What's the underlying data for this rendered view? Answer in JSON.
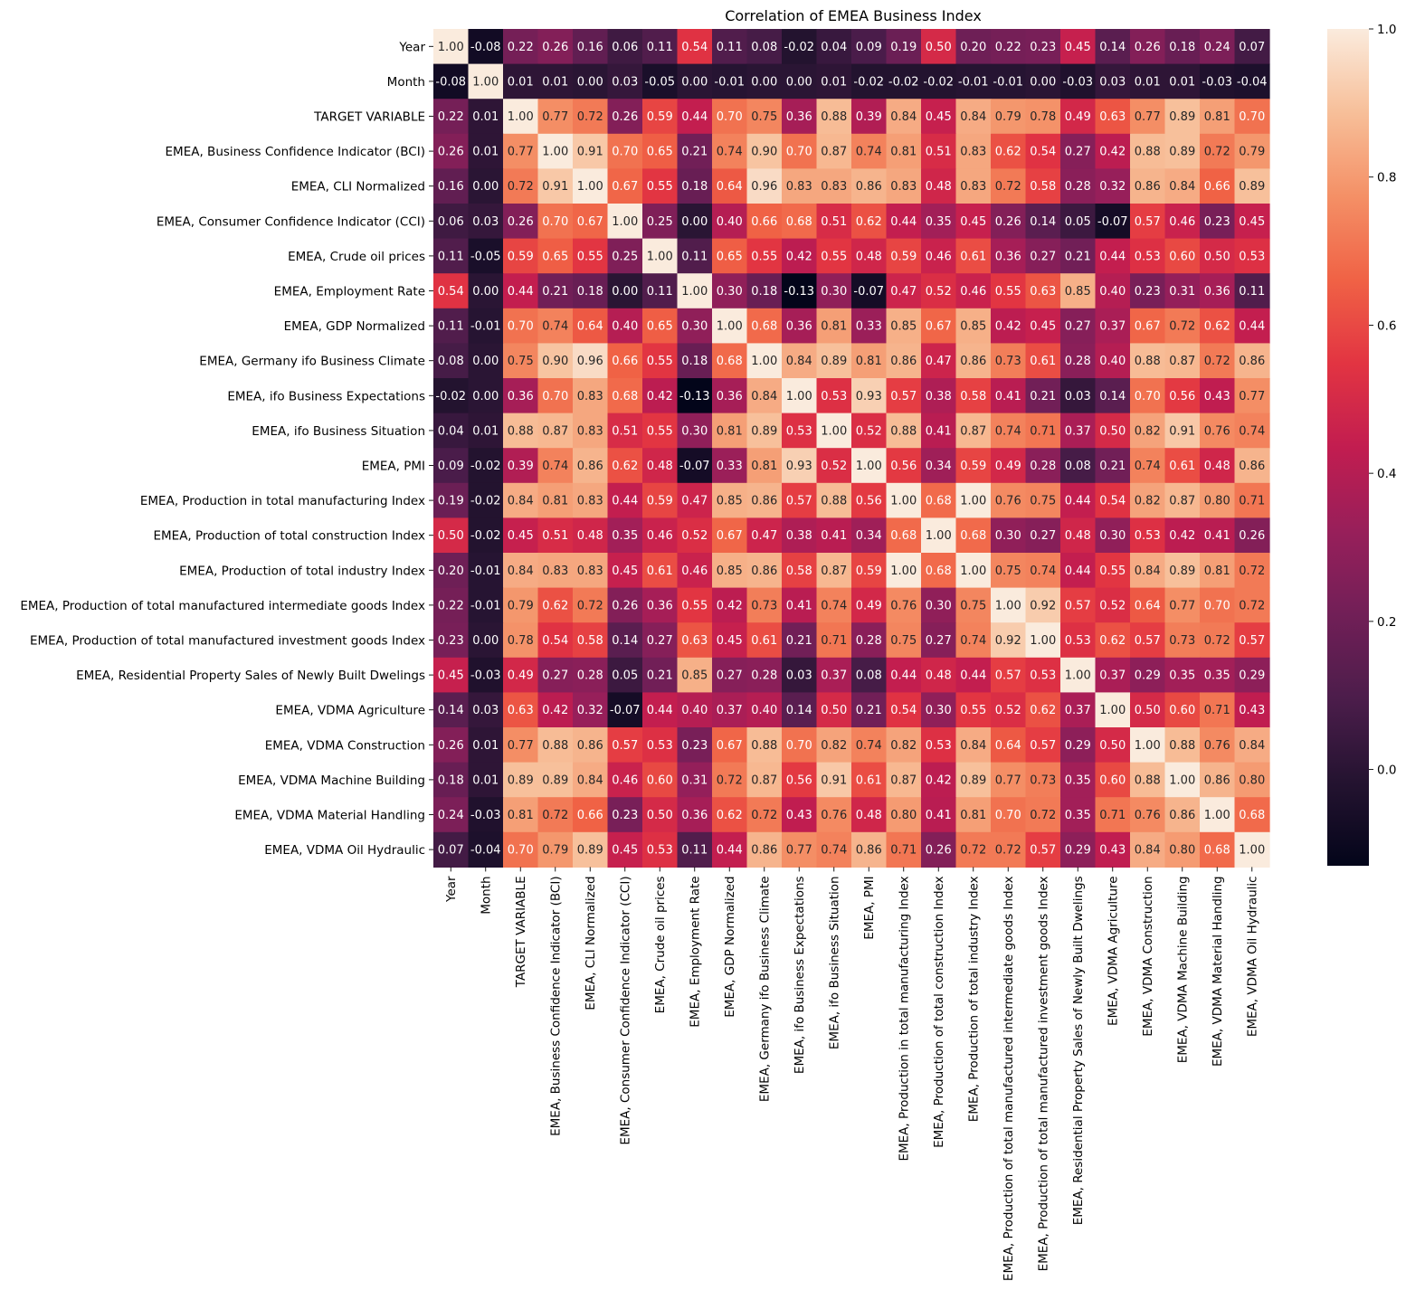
{
  "chart_data": {
    "type": "heatmap",
    "title": "Correlation of EMEA Business Index",
    "xlabel": "",
    "ylabel": "",
    "labels": [
      "Year",
      "Month",
      "TARGET VARIABLE",
      "EMEA, Business Confidence Indicator (BCI)",
      "EMEA, CLI Normalized",
      "EMEA, Consumer Confidence Indicator (CCI)",
      "EMEA, Crude oil prices",
      "EMEA, Employment Rate",
      "EMEA, GDP Normalized",
      "EMEA, Germany ifo Business Climate",
      "EMEA, ifo Business Expectations",
      "EMEA, ifo Business Situation",
      "EMEA, PMI",
      "EMEA, Production in total manufacturing Index",
      "EMEA, Production of total construction Index",
      "EMEA, Production of total industry Index",
      "EMEA, Production of total manufactured intermediate goods Index",
      "EMEA, Production of total manufactured investment goods Index",
      "EMEA, Residential Property Sales of Newly Built Dwelings",
      "EMEA, VDMA Agriculture",
      "EMEA, VDMA Construction",
      "EMEA, VDMA Machine Building",
      "EMEA, VDMA Material Handling",
      "EMEA, VDMA Oil Hydraulic"
    ],
    "matrix": [
      [
        1.0,
        -0.08,
        0.22,
        0.26,
        0.16,
        0.06,
        0.11,
        0.54,
        0.11,
        0.08,
        -0.02,
        0.04,
        0.09,
        0.19,
        0.5,
        0.2,
        0.22,
        0.23,
        0.45,
        0.14,
        0.26,
        0.18,
        0.24,
        0.07
      ],
      [
        -0.08,
        1.0,
        0.01,
        0.01,
        -0.0,
        0.03,
        -0.05,
        -0.0,
        -0.01,
        0.0,
        0.0,
        0.01,
        -0.02,
        -0.02,
        -0.02,
        -0.01,
        -0.01,
        0.0,
        -0.03,
        0.03,
        0.01,
        0.01,
        -0.03,
        -0.04
      ],
      [
        0.22,
        0.01,
        1.0,
        0.77,
        0.72,
        0.26,
        0.59,
        0.44,
        0.7,
        0.75,
        0.36,
        0.88,
        0.39,
        0.84,
        0.45,
        0.84,
        0.79,
        0.78,
        0.49,
        0.63,
        0.77,
        0.89,
        0.81,
        0.7
      ],
      [
        0.26,
        0.01,
        0.77,
        1.0,
        0.91,
        0.7,
        0.65,
        0.21,
        0.74,
        0.9,
        0.7,
        0.87,
        0.74,
        0.81,
        0.51,
        0.83,
        0.62,
        0.54,
        0.27,
        0.42,
        0.88,
        0.89,
        0.72,
        0.79
      ],
      [
        0.16,
        -0.0,
        0.72,
        0.91,
        1.0,
        0.67,
        0.55,
        0.18,
        0.64,
        0.96,
        0.83,
        0.83,
        0.86,
        0.83,
        0.48,
        0.83,
        0.72,
        0.58,
        0.28,
        0.32,
        0.86,
        0.84,
        0.66,
        0.89
      ],
      [
        0.06,
        0.03,
        0.26,
        0.7,
        0.67,
        1.0,
        0.25,
        0.0,
        0.4,
        0.66,
        0.68,
        0.51,
        0.62,
        0.44,
        0.35,
        0.45,
        0.26,
        0.14,
        0.05,
        -0.07,
        0.57,
        0.46,
        0.23,
        0.45
      ],
      [
        0.11,
        -0.05,
        0.59,
        0.65,
        0.55,
        0.25,
        1.0,
        0.11,
        0.65,
        0.55,
        0.42,
        0.55,
        0.48,
        0.59,
        0.46,
        0.61,
        0.36,
        0.27,
        0.21,
        0.44,
        0.53,
        0.6,
        0.5,
        0.53
      ],
      [
        0.54,
        -0.0,
        0.44,
        0.21,
        0.18,
        0.0,
        0.11,
        1.0,
        0.3,
        0.18,
        -0.13,
        0.3,
        -0.07,
        0.47,
        0.52,
        0.46,
        0.55,
        0.63,
        0.85,
        0.4,
        0.23,
        0.31,
        0.36,
        0.11
      ],
      [
        0.11,
        -0.01,
        0.7,
        0.74,
        0.64,
        0.4,
        0.65,
        0.3,
        1.0,
        0.68,
        0.36,
        0.81,
        0.33,
        0.85,
        0.67,
        0.85,
        0.42,
        0.45,
        0.27,
        0.37,
        0.67,
        0.72,
        0.62,
        0.44
      ],
      [
        0.08,
        0.0,
        0.75,
        0.9,
        0.96,
        0.66,
        0.55,
        0.18,
        0.68,
        1.0,
        0.84,
        0.89,
        0.81,
        0.86,
        0.47,
        0.86,
        0.73,
        0.61,
        0.28,
        0.4,
        0.88,
        0.87,
        0.72,
        0.86
      ],
      [
        -0.02,
        0.0,
        0.36,
        0.7,
        0.83,
        0.68,
        0.42,
        -0.13,
        0.36,
        0.84,
        1.0,
        0.53,
        0.93,
        0.57,
        0.38,
        0.58,
        0.41,
        0.21,
        0.03,
        0.14,
        0.7,
        0.56,
        0.43,
        0.77
      ],
      [
        0.04,
        0.01,
        0.88,
        0.87,
        0.83,
        0.51,
        0.55,
        0.3,
        0.81,
        0.89,
        0.53,
        1.0,
        0.52,
        0.88,
        0.41,
        0.87,
        0.74,
        0.71,
        0.37,
        0.5,
        0.82,
        0.91,
        0.76,
        0.74
      ],
      [
        0.09,
        -0.02,
        0.39,
        0.74,
        0.86,
        0.62,
        0.48,
        -0.07,
        0.33,
        0.81,
        0.93,
        0.52,
        1.0,
        0.56,
        0.34,
        0.59,
        0.49,
        0.28,
        0.08,
        0.21,
        0.74,
        0.61,
        0.48,
        0.86
      ],
      [
        0.19,
        -0.02,
        0.84,
        0.81,
        0.83,
        0.44,
        0.59,
        0.47,
        0.85,
        0.86,
        0.57,
        0.88,
        0.56,
        1.0,
        0.68,
        1.0,
        0.76,
        0.75,
        0.44,
        0.54,
        0.82,
        0.87,
        0.8,
        0.71
      ],
      [
        0.5,
        -0.02,
        0.45,
        0.51,
        0.48,
        0.35,
        0.46,
        0.52,
        0.67,
        0.47,
        0.38,
        0.41,
        0.34,
        0.68,
        1.0,
        0.68,
        0.3,
        0.27,
        0.48,
        0.3,
        0.53,
        0.42,
        0.41,
        0.26
      ],
      [
        0.2,
        -0.01,
        0.84,
        0.83,
        0.83,
        0.45,
        0.61,
        0.46,
        0.85,
        0.86,
        0.58,
        0.87,
        0.59,
        1.0,
        0.68,
        1.0,
        0.75,
        0.74,
        0.44,
        0.55,
        0.84,
        0.89,
        0.81,
        0.72
      ],
      [
        0.22,
        -0.01,
        0.79,
        0.62,
        0.72,
        0.26,
        0.36,
        0.55,
        0.42,
        0.73,
        0.41,
        0.74,
        0.49,
        0.76,
        0.3,
        0.75,
        1.0,
        0.92,
        0.57,
        0.52,
        0.64,
        0.77,
        0.7,
        0.72
      ],
      [
        0.23,
        0.0,
        0.78,
        0.54,
        0.58,
        0.14,
        0.27,
        0.63,
        0.45,
        0.61,
        0.21,
        0.71,
        0.28,
        0.75,
        0.27,
        0.74,
        0.92,
        1.0,
        0.53,
        0.62,
        0.57,
        0.73,
        0.72,
        0.57
      ],
      [
        0.45,
        -0.03,
        0.49,
        0.27,
        0.28,
        0.05,
        0.21,
        0.85,
        0.27,
        0.28,
        0.03,
        0.37,
        0.08,
        0.44,
        0.48,
        0.44,
        0.57,
        0.53,
        1.0,
        0.37,
        0.29,
        0.35,
        0.35,
        0.29
      ],
      [
        0.14,
        0.03,
        0.63,
        0.42,
        0.32,
        -0.07,
        0.44,
        0.4,
        0.37,
        0.4,
        0.14,
        0.5,
        0.21,
        0.54,
        0.3,
        0.55,
        0.52,
        0.62,
        0.37,
        1.0,
        0.5,
        0.6,
        0.71,
        0.43
      ],
      [
        0.26,
        0.01,
        0.77,
        0.88,
        0.86,
        0.57,
        0.53,
        0.23,
        0.67,
        0.88,
        0.7,
        0.82,
        0.74,
        0.82,
        0.53,
        0.84,
        0.64,
        0.57,
        0.29,
        0.5,
        1.0,
        0.88,
        0.76,
        0.84
      ],
      [
        0.18,
        0.01,
        0.89,
        0.89,
        0.84,
        0.46,
        0.6,
        0.31,
        0.72,
        0.87,
        0.56,
        0.91,
        0.61,
        0.87,
        0.42,
        0.89,
        0.77,
        0.73,
        0.35,
        0.6,
        0.88,
        1.0,
        0.86,
        0.8
      ],
      [
        0.24,
        -0.03,
        0.81,
        0.72,
        0.66,
        0.23,
        0.5,
        0.36,
        0.62,
        0.72,
        0.43,
        0.76,
        0.48,
        0.8,
        0.41,
        0.81,
        0.7,
        0.72,
        0.35,
        0.71,
        0.76,
        0.86,
        1.0,
        0.68
      ],
      [
        0.07,
        -0.04,
        0.7,
        0.79,
        0.89,
        0.45,
        0.53,
        0.11,
        0.44,
        0.86,
        0.77,
        0.74,
        0.86,
        0.71,
        0.26,
        0.72,
        0.72,
        0.57,
        0.29,
        0.43,
        0.84,
        0.8,
        0.68,
        1.0
      ]
    ],
    "vmin": -0.13,
    "vmax": 1.0,
    "colormap": "rocket",
    "colorbar_ticks": [
      0.0,
      0.2,
      0.4,
      0.6,
      0.8,
      1.0
    ],
    "colorbar_tick_labels": [
      "0.0",
      "0.2",
      "0.4",
      "0.6",
      "0.8",
      "1.0"
    ],
    "value_format": "0.00",
    "legend_position": "right"
  }
}
